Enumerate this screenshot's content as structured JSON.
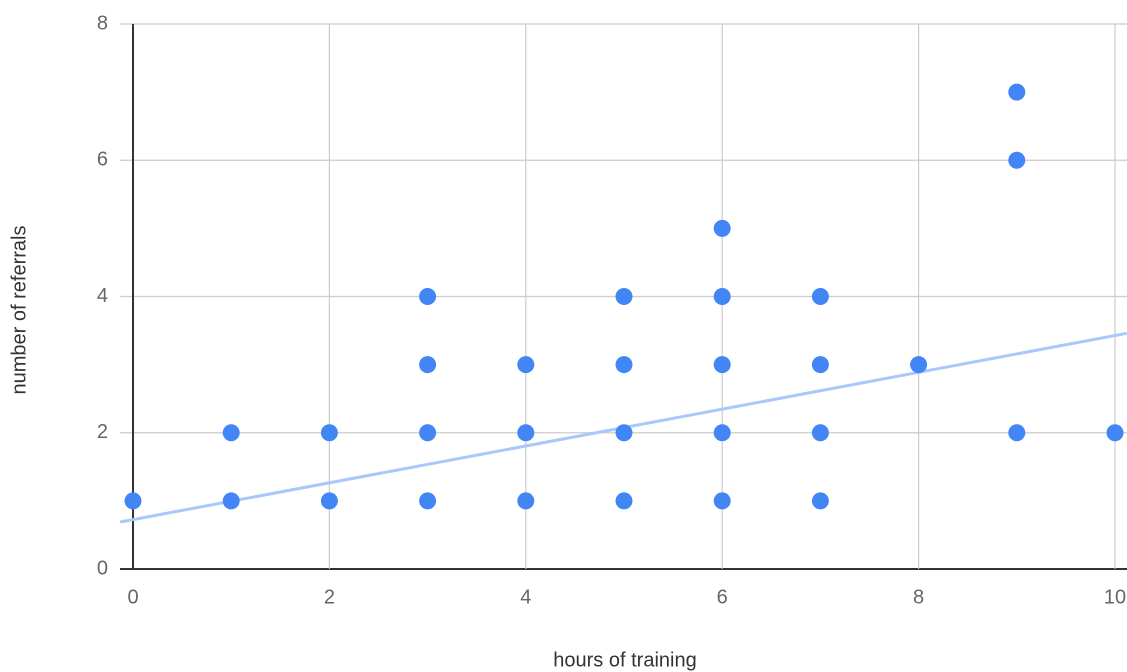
{
  "chart_data": {
    "type": "scatter",
    "x_label": "hours of training",
    "y_label": "number of referrals",
    "series": [
      {
        "color": "#4285f4",
        "x": [
          0,
          1,
          1,
          2,
          2,
          3,
          3,
          3,
          3,
          4,
          4,
          4,
          5,
          5,
          5,
          5,
          6,
          6,
          6,
          6,
          6,
          7,
          7,
          7,
          7,
          8,
          9,
          9,
          9,
          10
        ],
        "values": [
          1,
          1,
          2,
          1,
          2,
          1,
          2,
          3,
          4,
          1,
          2,
          3,
          1,
          2,
          3,
          4,
          1,
          2,
          3,
          4,
          5,
          1,
          2,
          3,
          4,
          3,
          2,
          6,
          7,
          2
        ]
      }
    ],
    "trendline": {
      "color": "#a8c7fa",
      "x": [
        -0.13,
        10.12
      ],
      "values": [
        0.69,
        3.46
      ]
    },
    "xlim": [
      0,
      10
    ],
    "xticks": [
      0,
      2,
      4,
      6,
      8,
      10
    ],
    "ylim": [
      0,
      8
    ],
    "yticks": [
      0,
      2,
      4,
      6,
      8
    ],
    "grid": true
  }
}
